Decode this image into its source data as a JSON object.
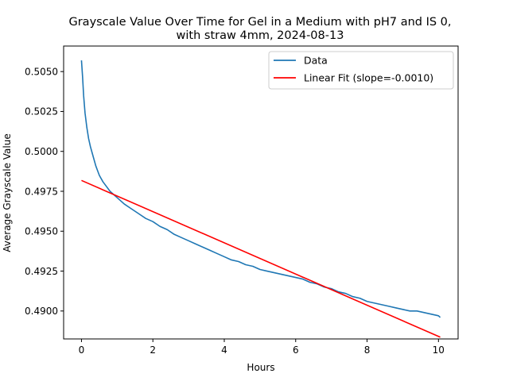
{
  "chart_data": {
    "type": "line",
    "title_line1": "Grayscale Value Over Time for Gel in a Medium with pH7 and IS 0,",
    "title_line2": "with straw 4mm, 2024-08-13",
    "xlabel": "Hours",
    "ylabel": "Average Grayscale Value",
    "xlim": [
      -0.5,
      10.55
    ],
    "ylim": [
      0.48825,
      0.5066
    ],
    "xticks": [
      0,
      2,
      4,
      6,
      8,
      10
    ],
    "xtick_labels": [
      "0",
      "2",
      "4",
      "6",
      "8",
      "10"
    ],
    "yticks": [
      0.49,
      0.4925,
      0.495,
      0.4975,
      0.5,
      0.5025,
      0.505
    ],
    "ytick_labels": [
      "0.4900",
      "0.4925",
      "0.4950",
      "0.4975",
      "0.5000",
      "0.5025",
      "0.5050"
    ],
    "legend_position": "upper-right",
    "grid": false,
    "series": [
      {
        "name": "Data",
        "color": "#1f77b4",
        "x": [
          0.0,
          0.03,
          0.06,
          0.1,
          0.15,
          0.2,
          0.25,
          0.3,
          0.35,
          0.4,
          0.45,
          0.5,
          0.6,
          0.7,
          0.8,
          0.9,
          1.0,
          1.1,
          1.2,
          1.4,
          1.6,
          1.8,
          2.0,
          2.2,
          2.4,
          2.6,
          2.8,
          3.0,
          3.2,
          3.4,
          3.6,
          3.8,
          4.0,
          4.2,
          4.4,
          4.6,
          4.8,
          5.0,
          5.2,
          5.4,
          5.6,
          5.8,
          6.0,
          6.2,
          6.4,
          6.6,
          6.8,
          7.0,
          7.2,
          7.4,
          7.6,
          7.8,
          8.0,
          8.2,
          8.4,
          8.6,
          8.8,
          9.0,
          9.2,
          9.4,
          9.6,
          9.8,
          10.0,
          10.05
        ],
        "y": [
          0.5057,
          0.5047,
          0.5035,
          0.5024,
          0.5015,
          0.5008,
          0.5003,
          0.4999,
          0.4995,
          0.4991,
          0.4988,
          0.4985,
          0.4981,
          0.4978,
          0.4975,
          0.4973,
          0.4971,
          0.4969,
          0.4967,
          0.4964,
          0.4961,
          0.4958,
          0.4956,
          0.4953,
          0.4951,
          0.4948,
          0.4946,
          0.4944,
          0.4942,
          0.494,
          0.4938,
          0.4936,
          0.4934,
          0.4932,
          0.4931,
          0.4929,
          0.4928,
          0.4926,
          0.4925,
          0.4924,
          0.4923,
          0.4922,
          0.4921,
          0.492,
          0.4918,
          0.4917,
          0.4915,
          0.4914,
          0.4912,
          0.4911,
          0.4909,
          0.4908,
          0.4906,
          0.4905,
          0.4904,
          0.4903,
          0.4902,
          0.4901,
          0.49,
          0.49,
          0.4899,
          0.4898,
          0.4897,
          0.4896
        ]
      },
      {
        "name": "Linear Fit (slope=-0.0010)",
        "color": "#ff0000",
        "x": [
          0.0,
          10.05
        ],
        "y": [
          0.49818,
          0.48836
        ]
      }
    ]
  }
}
